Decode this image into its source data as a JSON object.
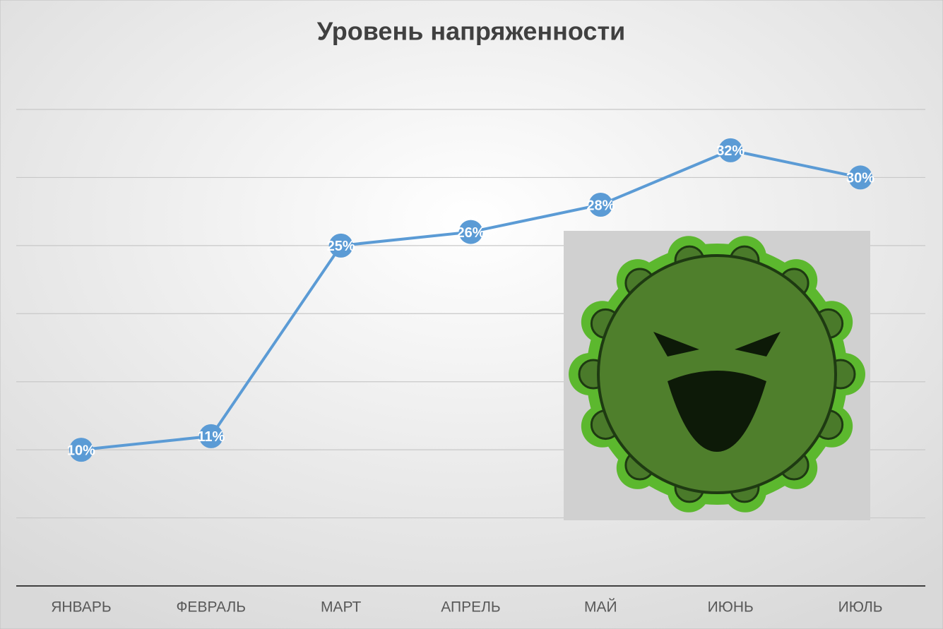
{
  "chart_data": {
    "type": "line",
    "title": "Уровень напряженности",
    "categories": [
      "ЯНВАРЬ",
      "ФЕВРАЛЬ",
      "МАРТ",
      "АПРЕЛЬ",
      "МАЙ",
      "ИЮНЬ",
      "ИЮЛЬ"
    ],
    "series": [
      {
        "name": "Уровень напряженности",
        "color": "#5b9bd5",
        "values": [
          10,
          11,
          25,
          26,
          28,
          32,
          30
        ],
        "value_labels": [
          "10%",
          "11%",
          "25%",
          "26%",
          "28%",
          "32%",
          "30%"
        ]
      }
    ],
    "ylim": [
      0,
      35
    ],
    "yticks": [
      0,
      5,
      10,
      15,
      20,
      25,
      30,
      35
    ],
    "grid": true
  }
}
